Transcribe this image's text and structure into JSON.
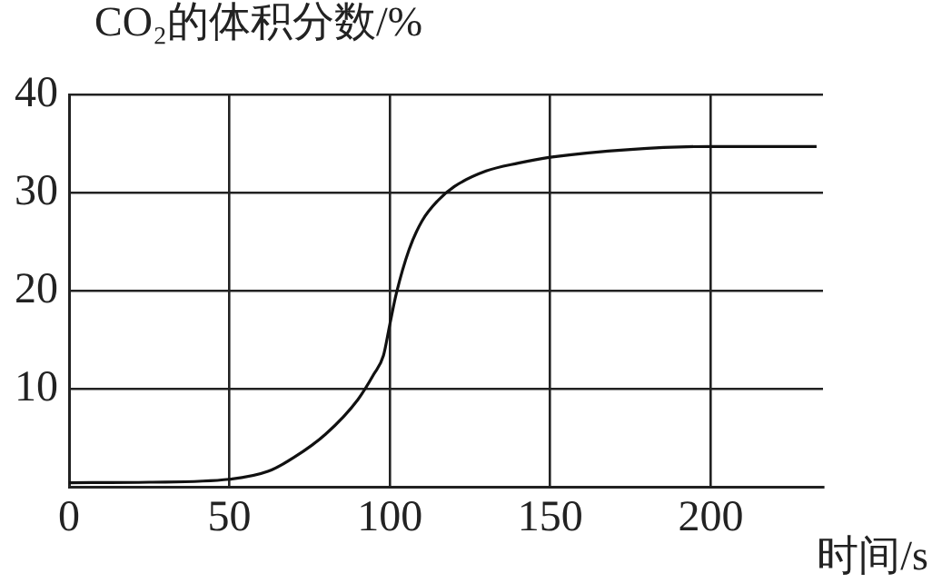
{
  "chart_data": {
    "type": "line",
    "ylabel": "CO₂的体积分数/%",
    "xlabel": "时间/s",
    "x": [
      0,
      25,
      50,
      62,
      70,
      80,
      90,
      95,
      98,
      100,
      102,
      106,
      110,
      115,
      120,
      130,
      140,
      150,
      175,
      200,
      233
    ],
    "series": [
      {
        "color": "#111111",
        "values": [
          0.45,
          0.5,
          0.8,
          1.6,
          3,
          5.4,
          8.9,
          11.5,
          13.4,
          16.6,
          19.7,
          24.2,
          27.1,
          29.2,
          30.6,
          32.2,
          33,
          33.6,
          34.4,
          34.7,
          34.7
        ]
      }
    ],
    "xlim": [
      0,
      235
    ],
    "xticks": [
      0,
      50,
      100,
      150,
      200
    ],
    "ylim": [
      0,
      40
    ],
    "yticks": [
      {
        "value": 0,
        "label": null
      },
      10,
      20,
      30,
      40
    ],
    "grid": true,
    "marker": "none",
    "line_style": "solid",
    "legend": false
  }
}
